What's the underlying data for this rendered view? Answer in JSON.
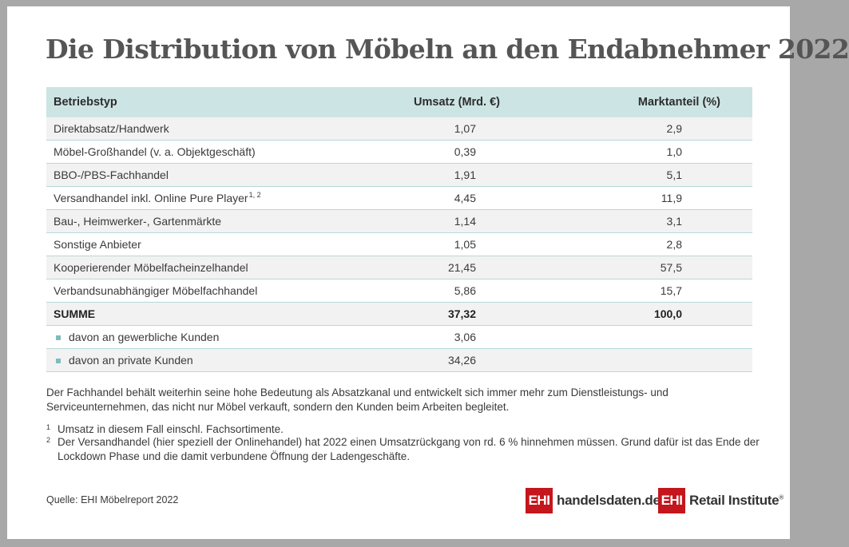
{
  "title": "Die Distribution von Möbeln an den Endabnehmer 2022",
  "table": {
    "headers": [
      "Betriebstyp",
      "Umsatz (Mrd. €)",
      "Marktanteil (%)"
    ],
    "rows": [
      {
        "label": "Direktabsatz/Handwerk",
        "umsatz": "1,07",
        "anteil": "2,9"
      },
      {
        "label": "Möbel-Großhandel (v. a. Objektgeschäft)",
        "umsatz": "0,39",
        "anteil": "1,0"
      },
      {
        "label": "BBO-/PBS-Fachhandel",
        "umsatz": "1,91",
        "anteil": "5,1"
      },
      {
        "label": "Versandhandel inkl. Online Pure Player",
        "sup": "1, 2",
        "umsatz": "4,45",
        "anteil": "11,9"
      },
      {
        "label": "Bau-, Heimwerker-, Gartenmärkte",
        "umsatz": "1,14",
        "anteil": "3,1"
      },
      {
        "label": "Sonstige Anbieter",
        "umsatz": "1,05",
        "anteil": "2,8"
      },
      {
        "label": "Kooperierender Möbelfacheinzelhandel",
        "umsatz": "21,45",
        "anteil": "57,5"
      },
      {
        "label": "Verbandsunabhängiger Möbelfachhandel",
        "umsatz": "5,86",
        "anteil": "15,7"
      }
    ],
    "sum": {
      "label": "SUMME",
      "umsatz": "37,32",
      "anteil": "100,0"
    },
    "sub_rows": [
      {
        "label": "davon an gewerbliche Kunden",
        "umsatz": "3,06"
      },
      {
        "label": "davon an private Kunden",
        "umsatz": "34,26"
      }
    ]
  },
  "note": "Der Fachhandel behält weiterhin seine hohe Bedeutung als Absatzkanal und entwickelt sich immer mehr zum Dienstleistungs- und Serviceunternehmen, das nicht nur Möbel verkauft, sondern den Kunden beim Arbeiten begleitet.",
  "footnotes": [
    {
      "num": "1",
      "text": "Umsatz in diesem Fall einschl. Fachsortimente."
    },
    {
      "num": "2",
      "text": "Der Versandhandel (hier speziell der Onlinehandel) hat 2022 einen Umsatzrückgang von rd. 6 % hinnehmen müssen. Grund dafür ist das Ende der Lockdown Phase und die damit verbundene Öffnung der Ladengeschäfte."
    }
  ],
  "source": "Quelle: EHI Möbelreport 2022",
  "logos": [
    {
      "mark": "EHI",
      "text": "handelsdaten.de"
    },
    {
      "mark": "EHI",
      "text": "Retail Institute",
      "reg": "®"
    }
  ],
  "colors": {
    "header_bg": "#cde4e4",
    "row_shade": "#f2f2f2",
    "bullet": "#7dbdbd",
    "brand_red": "#c4161c"
  }
}
